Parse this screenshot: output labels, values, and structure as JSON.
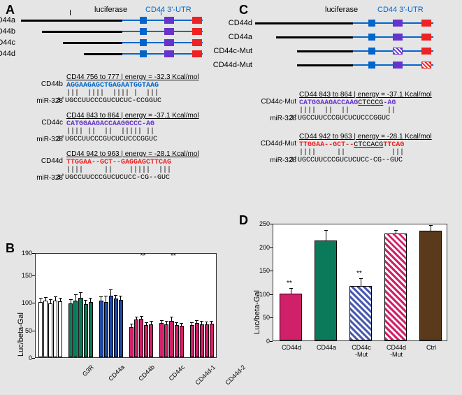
{
  "labels": {
    "A": "A",
    "B": "B",
    "C": "C",
    "D": "D",
    "luciferase": "luciferase",
    "cd44utr": "CD44 3'-UTR",
    "ylabel": "Luc/beta-Gal"
  },
  "colors": {
    "blue": "#0066cc",
    "purple": "#6633cc",
    "red": "#ee2222",
    "darkblue": "#1a4aa6",
    "teal": "#0a7a5a",
    "magenta": "#d1206a",
    "white": "#ffffff",
    "brown": "#5a3a1a",
    "black": "#000000",
    "hatch_blue": "#4a5ab0",
    "hatch_red": "#d1206a"
  },
  "panelA": {
    "constructs": [
      "CD44a",
      "CD44b",
      "CD44c",
      "CD44d"
    ],
    "seqs": [
      {
        "label1": "CD44b",
        "label2": "miR-328",
        "header": "CD44 756 to 777 | energy = -32.3 Kcal/mol",
        "top": "AGGAAGAGCTGAGAATGGTAAG",
        "mid": "|||  ||||  |||| |  |||",
        "bot": "3'UGCCUUCCCGUCUCUC-CCGGUC",
        "topColor": "#0066cc"
      },
      {
        "label1": "CD44c",
        "label2": "miR-328",
        "header": "CD44 843 to 864 | energy = -37.1 Kcal/mol",
        "top": "CATGGAAGACCAAGGCCC-AG",
        "mid": "|||| ||  ||  ||||| ||",
        "bot": "3'UGCCUUCCCGUCUCUCCCGGUC",
        "topColor": "#6633cc"
      },
      {
        "label1": "CD44d",
        "label2": "miR-328",
        "header": "CD44 942 to 963 | energy = -28.1 Kcal/mol",
        "top": "TTGGAA--GCT--GAGGAGCTTCAG",
        "mid": "||||     ||    |||||  |||",
        "bot": "3'UGCCUUCCCGUCUCUCC-CG--GUC",
        "topColor": "#ee2222"
      }
    ]
  },
  "panelC": {
    "constructs": [
      "CD44d",
      "CD44a",
      "CD44c-Mut",
      "CD44d-Mut"
    ],
    "seqs": [
      {
        "label1": "CD44c-Mut",
        "label2": "miR-328",
        "header": "CD44 843 to 864 | energy = -37.1 Kcal/mol",
        "top": "CATGGAAGACCAAGCTCCCG-AG",
        "mid": "||||  ||  ||         ||",
        "bot": "3'UGCCUUCCCGUCUCUCCCGGUC",
        "topColor": "#6633cc",
        "underlineStart": 14,
        "underlineLen": 6
      },
      {
        "label1": "CD44d-Mut",
        "label2": "miR-328",
        "header": "CD44 942 to 963 | energy = -28.1 Kcal/mol",
        "top": "TTGGAA--GCT--CTCCACGTTCAG",
        "mid": "||||     ||           |||",
        "bot": "3'UGCCUUCCCGUCUCUCC-CG--GUC",
        "topColor": "#ee2222",
        "underlineStart": 13,
        "underlineLen": 7
      }
    ]
  },
  "chartB": {
    "ylim": [
      0,
      190
    ],
    "yticks": [
      0,
      50,
      100,
      150,
      190
    ],
    "groups": [
      {
        "label": "G3R",
        "color": "#ffffff",
        "vals": [
          100,
          102,
          98,
          103,
          101
        ],
        "err": [
          6,
          6,
          6,
          6,
          6
        ]
      },
      {
        "label": "CD44a",
        "color": "#0a7a5a",
        "vals": [
          98,
          103,
          108,
          96,
          100
        ],
        "err": [
          6,
          10,
          8,
          6,
          6
        ]
      },
      {
        "label": "CD44b",
        "color": "#1a4aa6",
        "vals": [
          103,
          100,
          112,
          106,
          104
        ],
        "err": [
          6,
          10,
          10,
          6,
          6
        ]
      },
      {
        "label": "CD44c",
        "color": "#d1206a",
        "vals": [
          55,
          68,
          70,
          58,
          60
        ],
        "err": [
          4,
          4,
          4,
          4,
          4
        ],
        "star": "**"
      },
      {
        "label": "CD44d-1",
        "color": "#d1206a",
        "vals": [
          62,
          60,
          66,
          58,
          57
        ],
        "err": [
          4,
          4,
          6,
          4,
          4
        ],
        "star": "**"
      },
      {
        "label": "CD44d-2",
        "color": "#d1206a",
        "vals": [
          58,
          62,
          60,
          59,
          61
        ],
        "err": [
          4,
          4,
          4,
          4,
          4
        ]
      }
    ]
  },
  "chartD": {
    "ylim": [
      0,
      250
    ],
    "yticks": [
      0,
      50,
      100,
      150,
      200,
      250
    ],
    "bars": [
      {
        "label": "CD44d",
        "val": 100,
        "err": 10,
        "color": "#d1206a",
        "hatch": false,
        "star": "**"
      },
      {
        "label": "CD44a",
        "val": 213,
        "err": 20,
        "color": "#0a7a5a",
        "hatch": false
      },
      {
        "label": "CD44c\n-Mut",
        "val": 116,
        "err": 15,
        "color": "#4a5ab0",
        "hatch": true,
        "star": "**"
      },
      {
        "label": "CD44d\n-Mut",
        "val": 227,
        "err": 6,
        "color": "#d1206a",
        "hatch": true
      },
      {
        "label": "Ctrl",
        "val": 234,
        "err": 10,
        "color": "#5a3a1a",
        "hatch": false
      }
    ]
  }
}
